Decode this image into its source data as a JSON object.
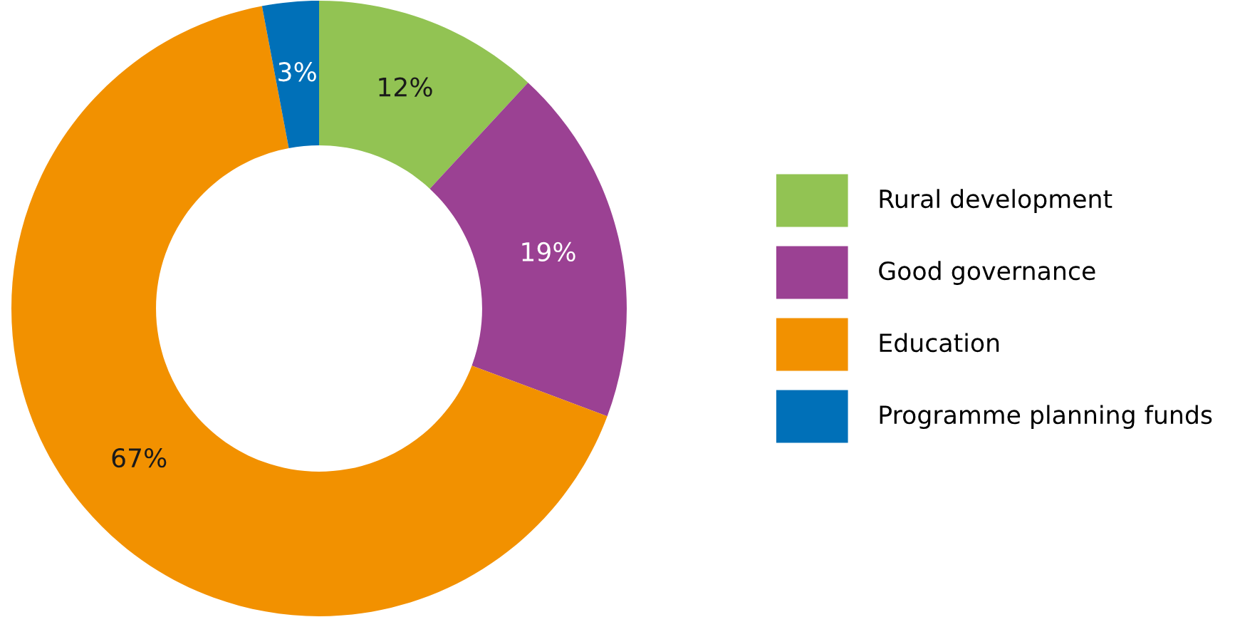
{
  "chart_data": {
    "type": "donut",
    "categories": [
      "Rural development",
      "Good governance",
      "Education",
      "Programme planning funds"
    ],
    "values": [
      12,
      19,
      67,
      3
    ],
    "colors": [
      "#92c353",
      "#9b4193",
      "#f29100",
      "#0070b8"
    ],
    "value_labels": [
      "12%",
      "19%",
      "67%",
      "3%"
    ],
    "legend": "right"
  }
}
